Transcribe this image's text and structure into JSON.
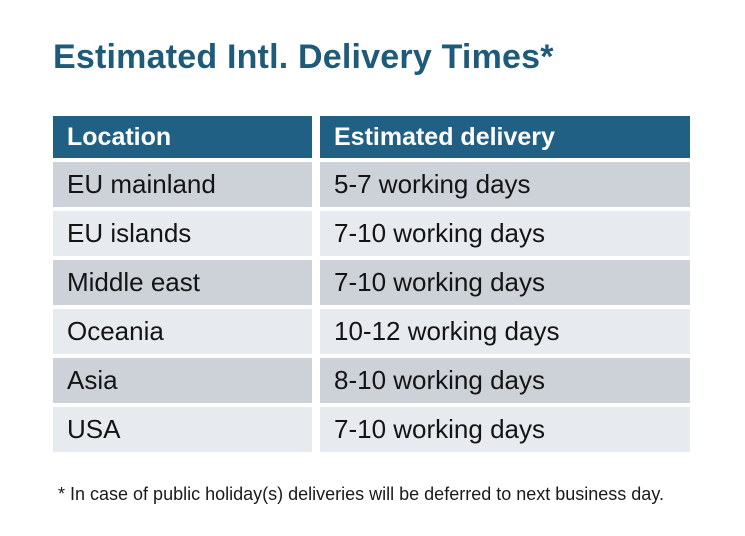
{
  "title": "Estimated Intl. Delivery Times*",
  "table": {
    "headers": {
      "location": "Location",
      "delivery": "Estimated delivery"
    },
    "rows": [
      {
        "location": "EU mainland",
        "delivery": "5-7 working days"
      },
      {
        "location": "EU islands",
        "delivery": "7-10 working days"
      },
      {
        "location": "Middle east",
        "delivery": "7-10 working days"
      },
      {
        "location": "Oceania",
        "delivery": "10-12 working days"
      },
      {
        "location": "Asia",
        "delivery": "8-10 working days"
      },
      {
        "location": "USA",
        "delivery": "7-10 working days"
      }
    ]
  },
  "footnote": "* In case of public holiday(s) deliveries will be deferred to next business day.",
  "colors": {
    "title_text": "#1E5B7A",
    "header_background": "#206085",
    "header_text": "#FFFFFF",
    "row_dark": "#CDD1D8",
    "row_light": "#E7EAEE",
    "body_text": "#141414"
  }
}
